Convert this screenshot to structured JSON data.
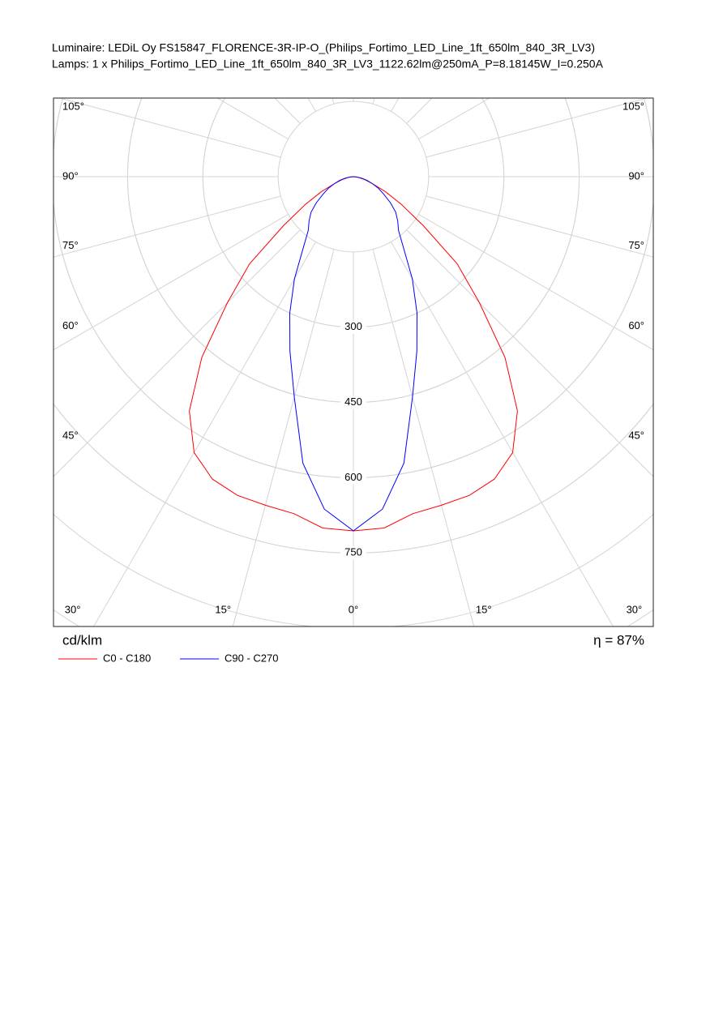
{
  "chart_data": {
    "type": "polar",
    "title": "Luminaire: LEDiL Oy FS15847_FLORENCE-3R-IP-O_(Philips_Fortimo_LED_Line_1ft_650lm_840_3R_LV3)",
    "subtitle": "Lamps: 1 x Philips_Fortimo_LED_Line_1ft_650lm_840_3R_LV3_1122.62lm@250mA_P=8.18145W_I=0.250A",
    "r_label": "cd/klm",
    "annotation": "η = 87%",
    "angles": [
      -90,
      -85,
      -80,
      -75,
      -70,
      -65,
      -60,
      -55,
      -50,
      -45,
      -40,
      -35,
      -30,
      -25,
      -20,
      -15,
      -10,
      -5,
      0,
      5,
      10,
      15,
      20,
      25,
      30,
      35,
      40,
      45,
      50,
      55,
      60,
      65,
      70,
      75,
      80,
      85,
      90
    ],
    "series": [
      {
        "name": "C0 - C180",
        "color": "#ff0000",
        "values": [
          0,
          5,
          12,
          25,
          40,
          70,
          110,
          170,
          270,
          355,
          470,
          570,
          635,
          665,
          676,
          678,
          682,
          703,
          706,
          703,
          682,
          678,
          676,
          665,
          635,
          570,
          470,
          355,
          270,
          170,
          110,
          70,
          40,
          25,
          12,
          5,
          0
        ]
      },
      {
        "name": "C90 - C270",
        "color": "#0000ff",
        "values": [
          0,
          7,
          16,
          28,
          40,
          55,
          70,
          90,
          110,
          125,
          140,
          175,
          235,
          300,
          370,
          455,
          580,
          665,
          706,
          665,
          580,
          455,
          370,
          300,
          235,
          175,
          140,
          125,
          110,
          90,
          70,
          55,
          40,
          28,
          16,
          7,
          0
        ]
      }
    ],
    "rlim": [
      0,
      1050
    ],
    "rticks": [
      300,
      450,
      600,
      750
    ],
    "angle_ticks": [
      {
        "value": 0,
        "label": "0°"
      },
      {
        "value": 15,
        "label": "15°"
      },
      {
        "value": 30,
        "label": "30°"
      },
      {
        "value": 45,
        "label": "45°"
      },
      {
        "value": 60,
        "label": "60°"
      },
      {
        "value": 75,
        "label": "75°"
      },
      {
        "value": 90,
        "label": "90°"
      },
      {
        "value": 105,
        "label": "105°"
      }
    ],
    "grid": true
  }
}
